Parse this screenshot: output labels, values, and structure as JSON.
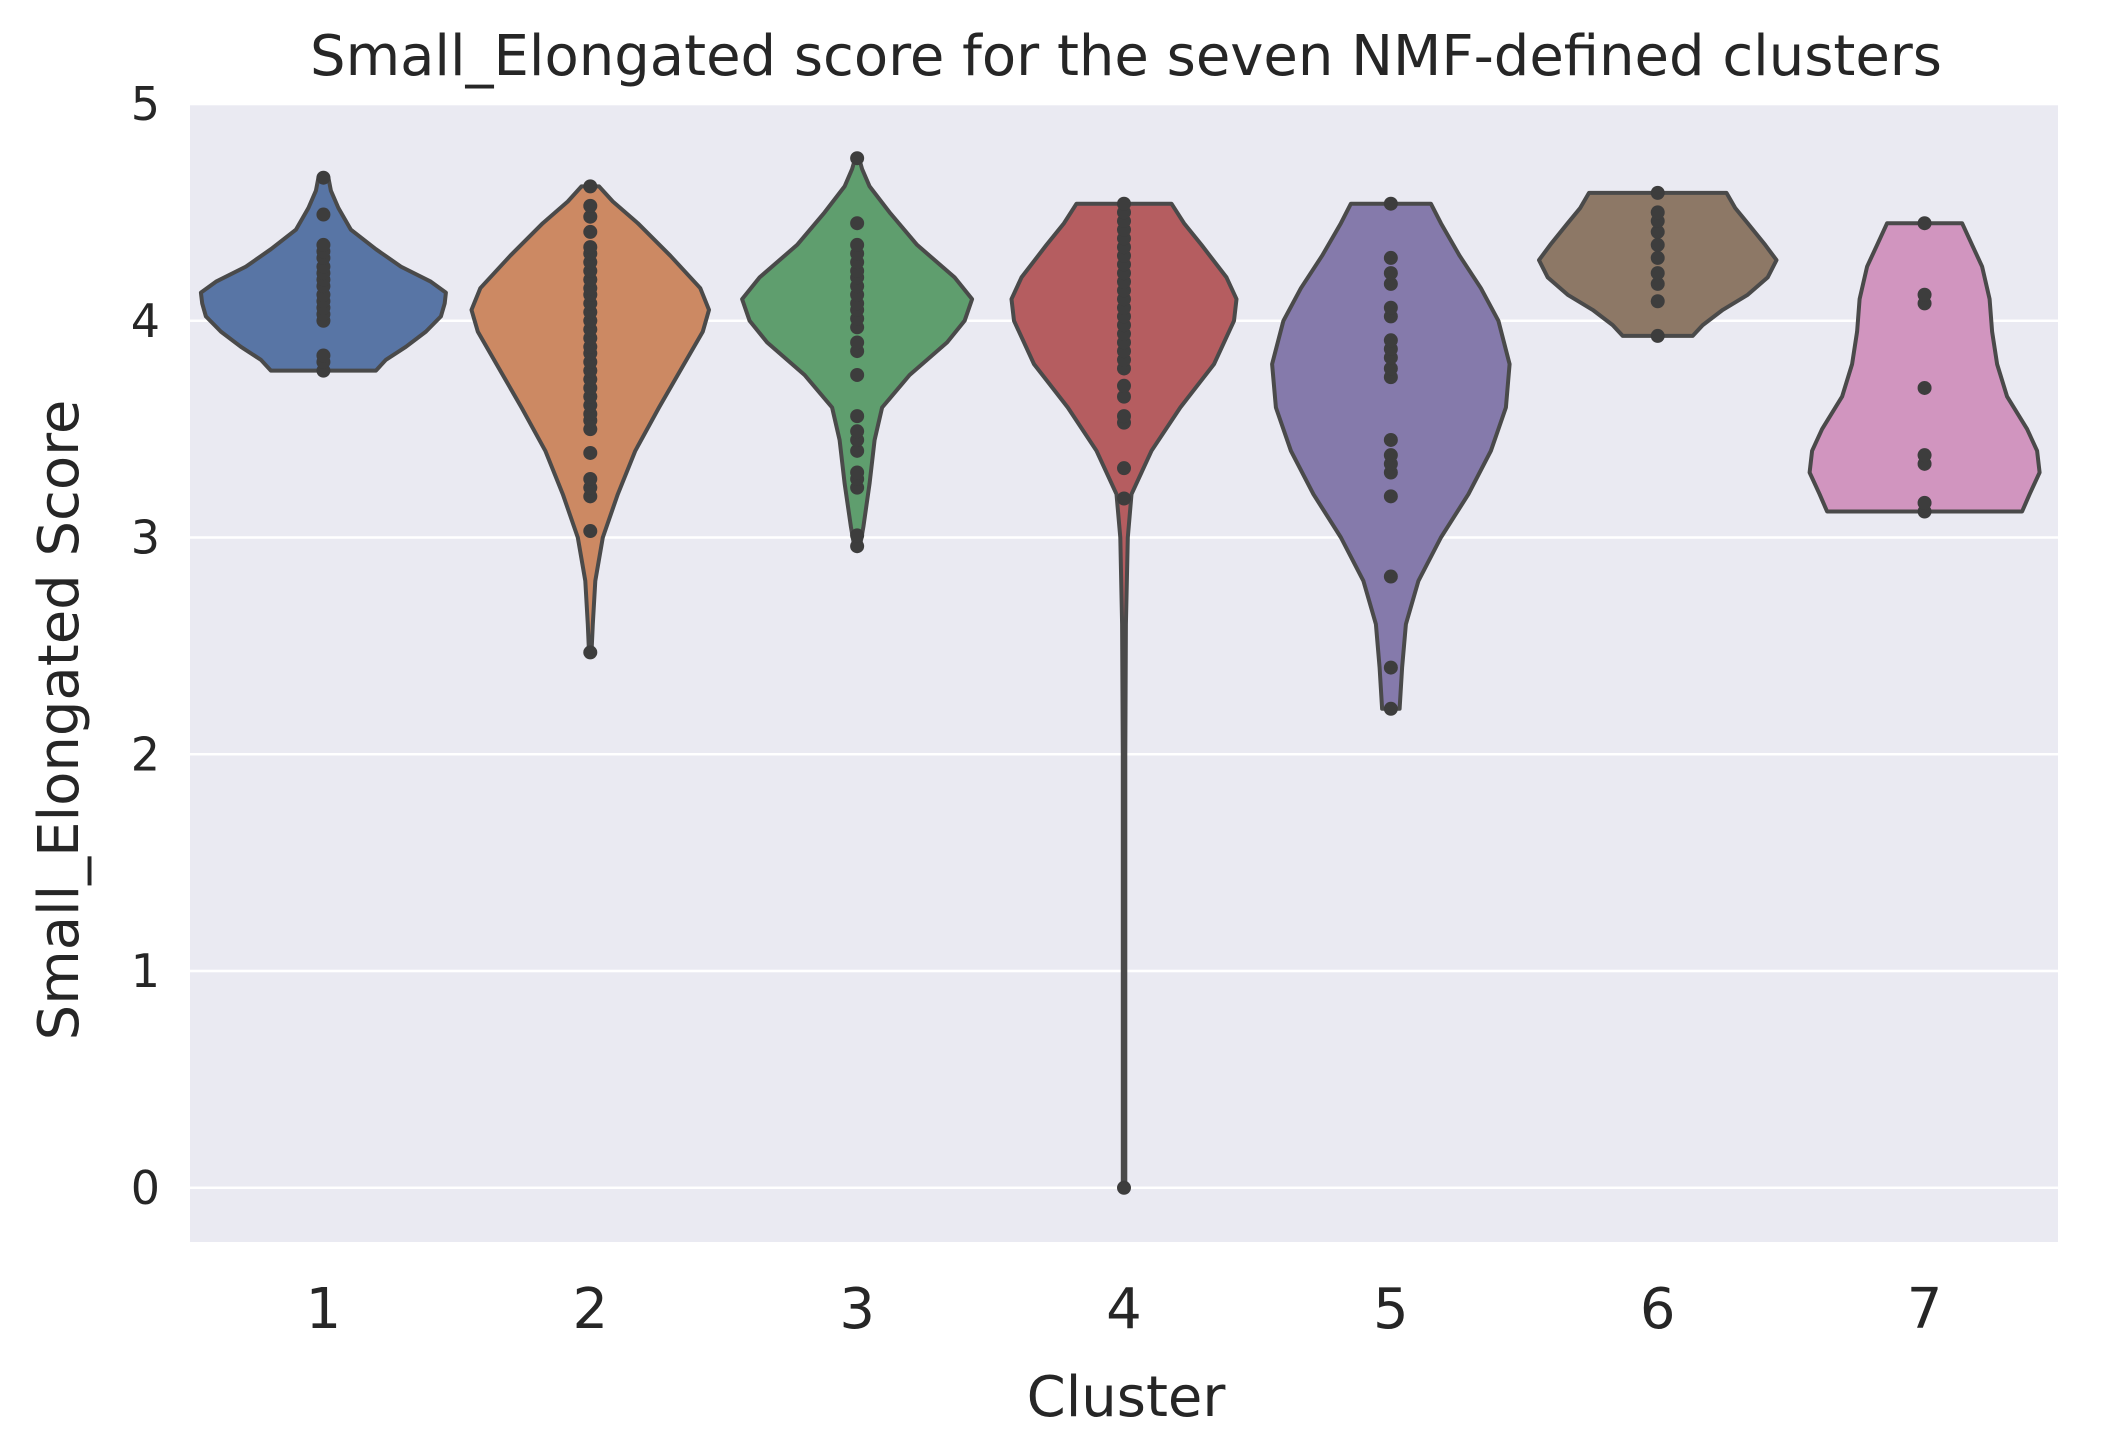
{
  "chart_data": {
    "type": "violin",
    "title": "Small_Elongated score for the seven NMF-defined clusters",
    "xlabel": "Cluster",
    "ylabel": "Small_Elongated Score",
    "ylim": [
      -0.25,
      5.0
    ],
    "yticks": [
      "0",
      "1",
      "2",
      "3",
      "4",
      "5"
    ],
    "grid": true,
    "legend": "none",
    "categories": [
      "1",
      "2",
      "3",
      "4",
      "5",
      "6",
      "7"
    ],
    "series": [
      {
        "category": "1",
        "color": "#5875a5",
        "min": 3.77,
        "max": 4.66,
        "density": [
          [
            3.77,
            0.42
          ],
          [
            3.82,
            0.5
          ],
          [
            3.88,
            0.66
          ],
          [
            3.95,
            0.82
          ],
          [
            4.02,
            0.94
          ],
          [
            4.08,
            0.97
          ],
          [
            4.13,
            0.98
          ],
          [
            4.18,
            0.86
          ],
          [
            4.25,
            0.62
          ],
          [
            4.33,
            0.42
          ],
          [
            4.42,
            0.22
          ],
          [
            4.52,
            0.12
          ],
          [
            4.6,
            0.06
          ],
          [
            4.66,
            0.04
          ]
        ],
        "points": [
          3.77,
          3.81,
          3.84,
          4.0,
          4.03,
          4.06,
          4.09,
          4.12,
          4.16,
          4.19,
          4.22,
          4.25,
          4.29,
          4.32,
          4.35,
          4.49,
          4.66
        ]
      },
      {
        "category": "2",
        "color": "#cc8963",
        "min": 2.47,
        "max": 4.62,
        "density": [
          [
            2.47,
            0.01
          ],
          [
            2.6,
            0.02
          ],
          [
            2.8,
            0.04
          ],
          [
            3.0,
            0.1
          ],
          [
            3.2,
            0.22
          ],
          [
            3.4,
            0.36
          ],
          [
            3.6,
            0.55
          ],
          [
            3.8,
            0.75
          ],
          [
            3.95,
            0.9
          ],
          [
            4.05,
            0.95
          ],
          [
            4.15,
            0.88
          ],
          [
            4.3,
            0.64
          ],
          [
            4.45,
            0.38
          ],
          [
            4.55,
            0.18
          ],
          [
            4.62,
            0.07
          ]
        ],
        "points": [
          2.47,
          3.03,
          3.19,
          3.23,
          3.27,
          3.39,
          3.5,
          3.54,
          3.57,
          3.61,
          3.65,
          3.69,
          3.73,
          3.77,
          3.81,
          3.85,
          3.88,
          3.92,
          3.96,
          4.0,
          4.04,
          4.08,
          4.12,
          4.15,
          4.19,
          4.23,
          4.27,
          4.31,
          4.34,
          4.41,
          4.48,
          4.53,
          4.62
        ]
      },
      {
        "category": "3",
        "color": "#5f9e6e",
        "min": 2.95,
        "max": 4.76,
        "density": [
          [
            2.95,
            0.02
          ],
          [
            3.05,
            0.05
          ],
          [
            3.25,
            0.1
          ],
          [
            3.45,
            0.14
          ],
          [
            3.6,
            0.2
          ],
          [
            3.75,
            0.42
          ],
          [
            3.9,
            0.72
          ],
          [
            4.0,
            0.86
          ],
          [
            4.1,
            0.92
          ],
          [
            4.2,
            0.78
          ],
          [
            4.35,
            0.48
          ],
          [
            4.5,
            0.26
          ],
          [
            4.62,
            0.1
          ],
          [
            4.7,
            0.04
          ],
          [
            4.76,
            0.01
          ]
        ],
        "points": [
          2.96,
          3.01,
          3.23,
          3.27,
          3.3,
          3.4,
          3.45,
          3.49,
          3.56,
          3.75,
          3.86,
          3.9,
          3.97,
          4.01,
          4.05,
          4.08,
          4.12,
          4.16,
          4.2,
          4.23,
          4.27,
          4.31,
          4.35,
          4.45,
          4.75
        ]
      },
      {
        "category": "4",
        "color": "#b55d60",
        "min": 0.0,
        "max": 4.54,
        "density": [
          [
            0.0,
            0.01
          ],
          [
            0.5,
            0.01
          ],
          [
            1.0,
            0.01
          ],
          [
            1.5,
            0.01
          ],
          [
            2.0,
            0.01
          ],
          [
            2.6,
            0.015
          ],
          [
            3.0,
            0.03
          ],
          [
            3.2,
            0.06
          ],
          [
            3.4,
            0.22
          ],
          [
            3.6,
            0.45
          ],
          [
            3.8,
            0.72
          ],
          [
            4.0,
            0.88
          ],
          [
            4.1,
            0.9
          ],
          [
            4.2,
            0.82
          ],
          [
            4.35,
            0.62
          ],
          [
            4.45,
            0.48
          ],
          [
            4.54,
            0.38
          ]
        ],
        "points": [
          0.0,
          3.18,
          3.32,
          3.53,
          3.56,
          3.65,
          3.7,
          3.78,
          3.82,
          3.86,
          3.9,
          3.94,
          3.98,
          4.02,
          4.06,
          4.1,
          4.14,
          4.18,
          4.22,
          4.26,
          4.3,
          4.34,
          4.38,
          4.42,
          4.46,
          4.5,
          4.54
        ]
      },
      {
        "category": "5",
        "color": "#857aab",
        "min": 2.21,
        "max": 4.54,
        "density": [
          [
            2.21,
            0.07
          ],
          [
            2.4,
            0.09
          ],
          [
            2.6,
            0.12
          ],
          [
            2.8,
            0.22
          ],
          [
            3.0,
            0.4
          ],
          [
            3.2,
            0.62
          ],
          [
            3.4,
            0.8
          ],
          [
            3.6,
            0.92
          ],
          [
            3.8,
            0.95
          ],
          [
            4.0,
            0.86
          ],
          [
            4.15,
            0.72
          ],
          [
            4.3,
            0.55
          ],
          [
            4.45,
            0.4
          ],
          [
            4.54,
            0.32
          ]
        ],
        "points": [
          2.21,
          2.4,
          2.82,
          3.19,
          3.3,
          3.34,
          3.38,
          3.45,
          3.74,
          3.78,
          3.83,
          3.87,
          3.91,
          4.02,
          4.06,
          4.17,
          4.22,
          4.29,
          4.54
        ]
      },
      {
        "category": "6",
        "color": "#8d7866",
        "min": 3.93,
        "max": 4.59,
        "density": [
          [
            3.93,
            0.28
          ],
          [
            3.98,
            0.36
          ],
          [
            4.05,
            0.52
          ],
          [
            4.12,
            0.72
          ],
          [
            4.2,
            0.88
          ],
          [
            4.28,
            0.95
          ],
          [
            4.35,
            0.86
          ],
          [
            4.45,
            0.72
          ],
          [
            4.52,
            0.62
          ],
          [
            4.59,
            0.55
          ]
        ],
        "points": [
          3.93,
          4.09,
          4.17,
          4.22,
          4.29,
          4.35,
          4.41,
          4.46,
          4.5,
          4.59
        ]
      },
      {
        "category": "7",
        "color": "#d195bf",
        "min": 3.12,
        "max": 4.45,
        "density": [
          [
            3.12,
            0.78
          ],
          [
            3.2,
            0.84
          ],
          [
            3.3,
            0.92
          ],
          [
            3.4,
            0.9
          ],
          [
            3.5,
            0.82
          ],
          [
            3.65,
            0.66
          ],
          [
            3.8,
            0.58
          ],
          [
            3.95,
            0.54
          ],
          [
            4.1,
            0.52
          ],
          [
            4.25,
            0.46
          ],
          [
            4.35,
            0.38
          ],
          [
            4.45,
            0.3
          ]
        ],
        "points": [
          3.12,
          3.16,
          3.34,
          3.38,
          3.69,
          4.08,
          4.12,
          4.45
        ]
      }
    ]
  }
}
